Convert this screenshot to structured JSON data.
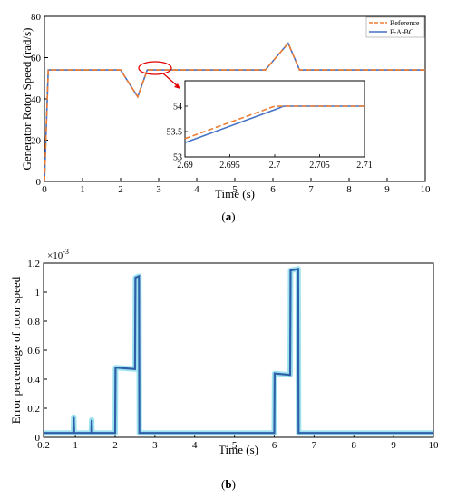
{
  "chart_data": [
    {
      "type": "line",
      "caption_letter": "a",
      "xlabel": "Time (s)",
      "ylabel": "Generator Rotor Speed (rad/s)",
      "xlim": [
        0,
        10
      ],
      "ylim": [
        0,
        80
      ],
      "xticks": [
        0,
        1,
        2,
        3,
        4,
        5,
        6,
        7,
        8,
        9,
        10
      ],
      "yticks": [
        0,
        20,
        40,
        60,
        80
      ],
      "legend_position": "top-right",
      "series": [
        {
          "name": "Reference",
          "color": "#ED7D31",
          "style": "dashed",
          "x": [
            0,
            0.1,
            2.0,
            2.45,
            2.7,
            5.8,
            6.4,
            6.7,
            10
          ],
          "y": [
            0,
            54,
            54,
            41,
            54,
            54,
            67,
            54,
            54
          ]
        },
        {
          "name": "F-A-BC",
          "color": "#4472C4",
          "style": "solid",
          "x": [
            0,
            0.1,
            2.0,
            2.45,
            2.7,
            5.8,
            6.4,
            6.7,
            10
          ],
          "y": [
            0,
            54,
            54,
            41,
            54,
            54,
            67,
            54,
            54
          ]
        }
      ],
      "inset": {
        "xlim": [
          2.69,
          2.71
        ],
        "ylim": [
          53,
          54.5
        ],
        "xticks": [
          "2.69",
          "2.695",
          "2.7",
          "2.705",
          "2.71"
        ],
        "yticks": [
          "53",
          "53.5",
          "54"
        ],
        "series": [
          {
            "name": "Reference",
            "x": [
              2.69,
              2.7,
              2.71
            ],
            "y": [
              53.36,
              54.0,
              54.0
            ]
          },
          {
            "name": "F-A-BC",
            "x": [
              2.69,
              2.7,
              2.701,
              2.71
            ],
            "y": [
              53.28,
              53.93,
              54.0,
              54.0
            ]
          }
        ]
      }
    },
    {
      "type": "line",
      "caption_letter": "b",
      "xlabel": "Time (s)",
      "ylabel": "Error percentage of rotor  speed",
      "y_multiplier": "×10",
      "y_multiplier_exp": "-3",
      "xlim": [
        0.2,
        10
      ],
      "ylim": [
        0,
        1.2
      ],
      "xticks": [
        "0.2",
        "1",
        "2",
        "3",
        "4",
        "5",
        "6",
        "7",
        "8",
        "9",
        "10"
      ],
      "yticks": [
        "0",
        "0.2",
        "0.4",
        "0.6",
        "0.8",
        "1",
        "1.2"
      ],
      "series": [
        {
          "color": "#2E5FA8",
          "x": [
            0.2,
            0.95,
            0.96,
            0.97,
            1.4,
            1.41,
            1.42,
            2.0,
            2.01,
            2.5,
            2.51,
            2.6,
            2.61,
            2.7,
            2.71,
            6.0,
            6.01,
            6.4,
            6.41,
            6.6,
            6.61,
            6.7,
            6.71,
            10
          ],
          "y": [
            0.03,
            0.03,
            0.14,
            0.03,
            0.03,
            0.12,
            0.03,
            0.03,
            0.48,
            0.47,
            1.1,
            1.11,
            0.03,
            0.03,
            0.03,
            0.03,
            0.44,
            0.43,
            1.15,
            1.16,
            0.03,
            0.03,
            0.03,
            0.03
          ]
        }
      ]
    }
  ]
}
